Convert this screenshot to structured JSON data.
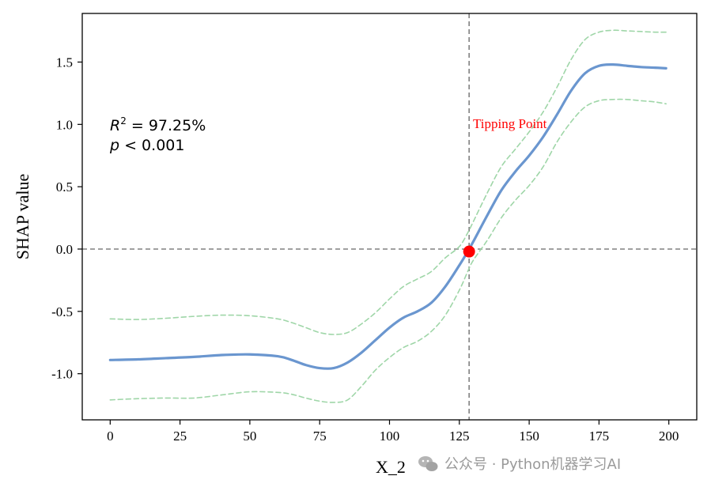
{
  "chart_data": {
    "type": "line",
    "xlabel": "X_2",
    "ylabel": "SHAP value",
    "xlim": [
      -10,
      210
    ],
    "ylim": [
      -1.37,
      1.89
    ],
    "x_ticks": [
      0,
      25,
      50,
      75,
      100,
      125,
      150,
      175,
      200
    ],
    "x_tick_labels": [
      "0",
      "25",
      "50",
      "75",
      "100",
      "125",
      "150",
      "175",
      "200"
    ],
    "y_ticks": [
      1.5,
      1.0,
      0.5,
      0.0,
      -0.5,
      -1.0
    ],
    "y_tick_labels": [
      "1.5",
      "1.0",
      "0.5",
      "0.0",
      "-0.5",
      "-1.0"
    ],
    "grid": false,
    "x": [
      0,
      10,
      20,
      30,
      40,
      50,
      60,
      65,
      70,
      75,
      80,
      85,
      90,
      95,
      100,
      105,
      110,
      115,
      120,
      125,
      128,
      130,
      135,
      140,
      145,
      150,
      155,
      160,
      165,
      170,
      175,
      180,
      185,
      190,
      195,
      199
    ],
    "series": [
      {
        "role": "fit",
        "color": "#6a96cf",
        "style": "solid",
        "values": [
          -0.89,
          -0.885,
          -0.875,
          -0.865,
          -0.85,
          -0.845,
          -0.86,
          -0.89,
          -0.93,
          -0.955,
          -0.955,
          -0.91,
          -0.83,
          -0.73,
          -0.63,
          -0.55,
          -0.5,
          -0.43,
          -0.3,
          -0.13,
          -0.02,
          0.06,
          0.27,
          0.47,
          0.62,
          0.75,
          0.9,
          1.08,
          1.27,
          1.41,
          1.47,
          1.48,
          1.47,
          1.46,
          1.455,
          1.45
        ]
      },
      {
        "role": "upper_band",
        "color": "#9fd6a8",
        "style": "dashed",
        "values": [
          -0.56,
          -0.565,
          -0.555,
          -0.54,
          -0.53,
          -0.535,
          -0.56,
          -0.59,
          -0.63,
          -0.67,
          -0.685,
          -0.67,
          -0.6,
          -0.51,
          -0.4,
          -0.3,
          -0.24,
          -0.18,
          -0.07,
          0.02,
          0.13,
          0.22,
          0.45,
          0.66,
          0.8,
          0.94,
          1.1,
          1.3,
          1.52,
          1.68,
          1.74,
          1.755,
          1.75,
          1.745,
          1.74,
          1.74
        ]
      },
      {
        "role": "lower_band",
        "color": "#9fd6a8",
        "style": "dashed",
        "values": [
          -1.21,
          -1.2,
          -1.195,
          -1.195,
          -1.17,
          -1.145,
          -1.15,
          -1.165,
          -1.195,
          -1.22,
          -1.23,
          -1.21,
          -1.1,
          -0.97,
          -0.87,
          -0.79,
          -0.74,
          -0.66,
          -0.53,
          -0.33,
          -0.18,
          -0.09,
          0.07,
          0.25,
          0.39,
          0.51,
          0.66,
          0.86,
          1.02,
          1.14,
          1.19,
          1.2,
          1.2,
          1.19,
          1.18,
          1.165
        ]
      }
    ],
    "reference_lines": {
      "horizontal_y": 0.0,
      "vertical_x": 128.5,
      "color": "#808080"
    },
    "tipping_point": {
      "x": 128.5,
      "y": -0.02,
      "label": "Tipping Point",
      "color": "#ff0000"
    },
    "annotations": {
      "r2_line": "R² = 97.25%",
      "p_line": "p < 0.001"
    }
  },
  "watermark": {
    "text": "公众号 · Python机器学习AI"
  }
}
